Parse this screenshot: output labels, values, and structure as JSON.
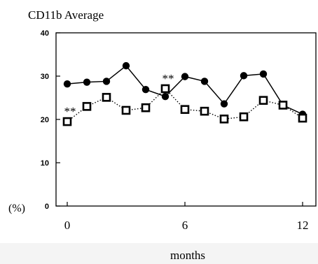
{
  "chart_data": {
    "type": "line",
    "title": "CD11b Average",
    "xlabel": "months",
    "ylabel": "(%)",
    "xlim": [
      0,
      12.5
    ],
    "ylim": [
      0,
      40
    ],
    "x_ticks": [
      0,
      6,
      12
    ],
    "y_ticks": [
      0,
      10,
      20,
      30,
      40
    ],
    "grid": false,
    "legend": "none",
    "series": [
      {
        "marker": "filled-circle",
        "line": "solid",
        "color": "#000000",
        "x": [
          0,
          1,
          2,
          3,
          4,
          5,
          6,
          7,
          8,
          9,
          10,
          11,
          12
        ],
        "y": [
          28.2,
          28.6,
          28.8,
          32.4,
          26.9,
          25.3,
          29.9,
          28.8,
          23.6,
          30.1,
          30.5,
          23.3,
          21.2
        ]
      },
      {
        "marker": "open-square",
        "line": "dotted",
        "color": "#000000",
        "x": [
          0,
          1,
          2,
          3,
          4,
          5,
          6,
          7,
          8,
          9,
          10,
          11,
          12
        ],
        "y": [
          19.5,
          23.0,
          25.1,
          22.1,
          22.7,
          27.1,
          22.3,
          21.9,
          20.1,
          20.6,
          24.4,
          23.3,
          20.3
        ]
      }
    ],
    "annotations": [
      {
        "text": "**",
        "x": 0,
        "y": 19.5
      },
      {
        "text": "**",
        "x": 5,
        "y": 27.1
      }
    ]
  }
}
